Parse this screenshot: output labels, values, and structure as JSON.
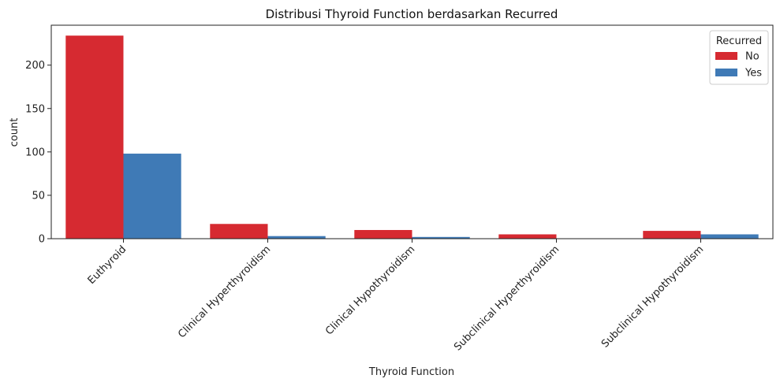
{
  "chart_data": {
    "type": "bar",
    "title": "Distribusi Thyroid Function berdasarkan Recurred",
    "xlabel": "Thyroid Function",
    "ylabel": "count",
    "categories": [
      "Euthyroid",
      "Clinical Hyperthyroidism",
      "Clinical Hypothyroidism",
      "Subclinical Hyperthyroidism",
      "Subclinical Hypothyroidism"
    ],
    "series": [
      {
        "name": "No",
        "color": "#d62a31",
        "values": [
          234,
          17,
          10,
          5,
          9
        ]
      },
      {
        "name": "Yes",
        "color": "#3f7ab6",
        "values": [
          98,
          3,
          2,
          0,
          5
        ]
      }
    ],
    "yticks": [
      0,
      50,
      100,
      150,
      200
    ],
    "ylim": [
      0,
      246
    ],
    "legend": {
      "title": "Recurred",
      "placement": "top-right"
    },
    "grid": false
  }
}
